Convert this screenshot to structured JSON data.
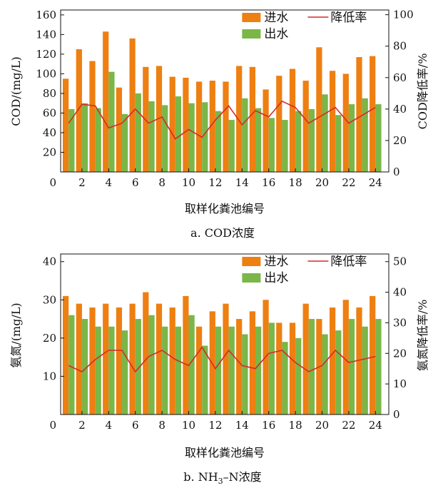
{
  "chart_data": [
    {
      "type": "bar",
      "caption": "a. COD浓度",
      "xlabel": "取样化粪池编号",
      "ylabel_left": "COD/(mg/L)",
      "ylabel_right": "COD降低率/%",
      "x": [
        1,
        2,
        3,
        4,
        5,
        6,
        7,
        8,
        9,
        10,
        11,
        12,
        13,
        14,
        15,
        16,
        17,
        18,
        19,
        20,
        21,
        22,
        23,
        24
      ],
      "x_ticks": [
        0,
        2,
        4,
        6,
        8,
        10,
        12,
        14,
        16,
        18,
        20,
        22,
        24
      ],
      "ylim_left": [
        0,
        165
      ],
      "yticks_left": [
        20,
        40,
        60,
        80,
        100,
        120,
        140,
        160
      ],
      "ylim_right": [
        0,
        103
      ],
      "yticks_right": [
        0,
        20,
        40,
        60,
        80,
        100
      ],
      "legend_position": "top-right",
      "series": [
        {
          "name": "进水",
          "color": "#ee7f11",
          "axis": "left",
          "values": [
            95,
            125,
            113,
            143,
            86,
            136,
            107,
            108,
            97,
            96,
            92,
            93,
            92,
            108,
            107,
            84,
            98,
            105,
            93,
            127,
            103,
            100,
            117,
            118
          ]
        },
        {
          "name": "出水",
          "color": "#7ab648",
          "axis": "left",
          "values": [
            64,
            70,
            65,
            102,
            59,
            80,
            72,
            68,
            77,
            70,
            71,
            62,
            53,
            75,
            65,
            55,
            53,
            62,
            64,
            79,
            58,
            69,
            75,
            69
          ]
        },
        {
          "name": "降低率",
          "color": "#d42a2a",
          "axis": "right",
          "type": "line",
          "values": [
            31,
            43,
            42,
            28,
            31,
            40,
            31,
            35,
            21,
            27,
            22,
            33,
            42,
            30,
            39,
            35,
            45,
            41,
            31,
            36,
            41,
            31,
            36,
            41
          ]
        }
      ]
    },
    {
      "type": "bar",
      "caption_parts": [
        "b. NH",
        "3",
        "–N浓度"
      ],
      "xlabel": "取样化粪池编号",
      "ylabel_left": "氨氮/(mg/L)",
      "ylabel_right": "氨氮降低率/%",
      "x": [
        1,
        2,
        3,
        4,
        5,
        6,
        7,
        8,
        9,
        10,
        11,
        12,
        13,
        14,
        15,
        16,
        17,
        18,
        19,
        20,
        21,
        22,
        23,
        24
      ],
      "x_ticks": [
        0,
        2,
        4,
        6,
        8,
        10,
        12,
        14,
        16,
        18,
        20,
        22,
        24
      ],
      "ylim_left": [
        0,
        42
      ],
      "yticks_left": [
        10,
        20,
        30,
        40
      ],
      "ylim_right": [
        0,
        52.5
      ],
      "yticks_right": [
        0,
        10,
        20,
        30,
        40,
        50
      ],
      "legend_position": "top-right",
      "series": [
        {
          "name": "进水",
          "color": "#ee7f11",
          "axis": "left",
          "values": [
            31,
            29,
            28,
            29,
            28,
            29,
            32,
            29,
            28,
            31,
            23,
            27,
            29,
            25,
            27,
            30,
            24,
            24,
            29,
            25,
            28,
            30,
            28,
            31
          ]
        },
        {
          "name": "出水",
          "color": "#7ab648",
          "axis": "left",
          "values": [
            26,
            25,
            23,
            23,
            22,
            25,
            26,
            23,
            23,
            26,
            18,
            23,
            23,
            21,
            23,
            24,
            19,
            20,
            25,
            21,
            22,
            25,
            23,
            25
          ]
        },
        {
          "name": "降低率",
          "color": "#d42a2a",
          "axis": "right",
          "type": "line",
          "values": [
            16,
            14,
            18,
            21,
            21,
            14,
            19,
            21,
            18,
            16,
            22,
            15,
            21,
            16,
            15,
            20,
            21,
            17,
            14,
            16,
            21,
            17,
            18,
            19
          ]
        }
      ]
    }
  ]
}
